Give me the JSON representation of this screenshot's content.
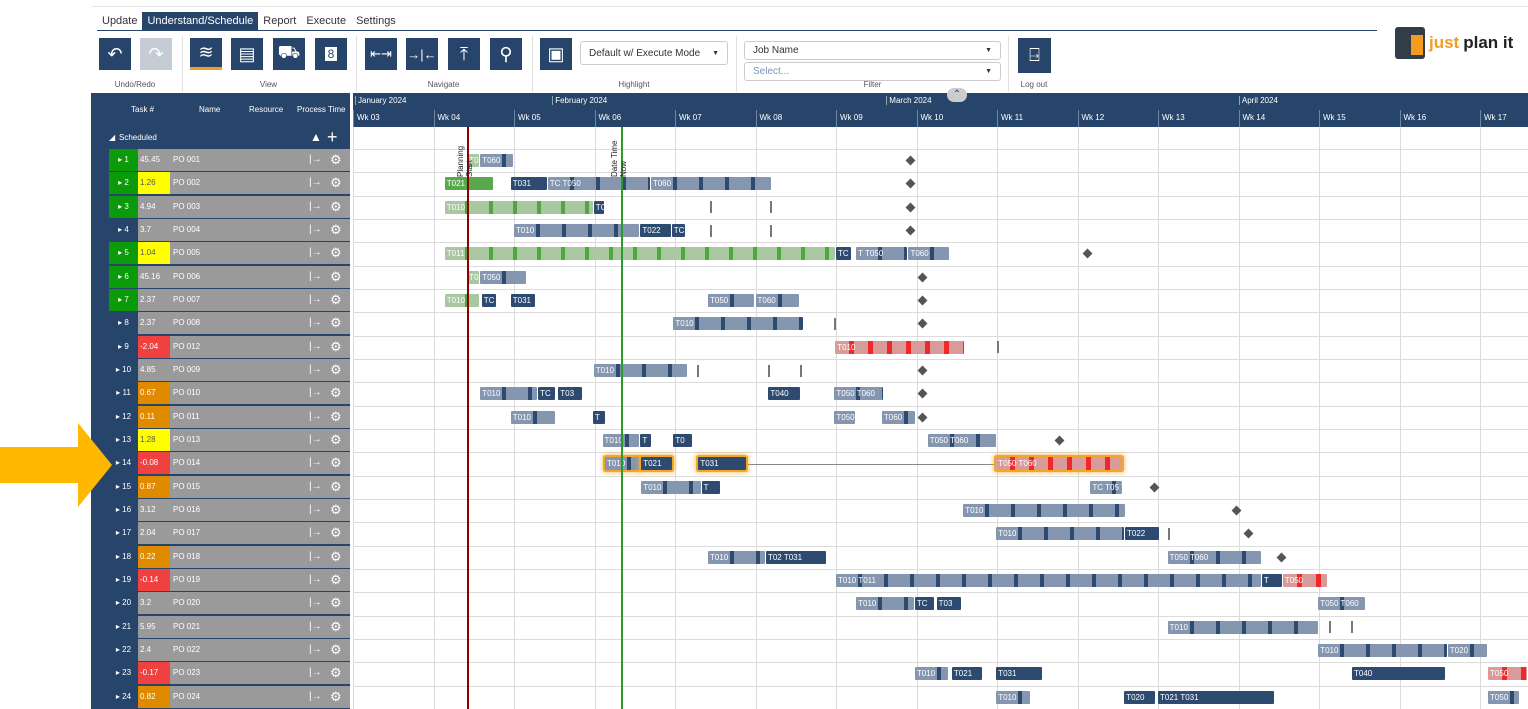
{
  "tabs": [
    "Update",
    "Understand/Schedule",
    "Report",
    "Execute",
    "Settings"
  ],
  "active_tab": "Understand/Schedule",
  "toolbar": {
    "groups": {
      "undo": "Undo/Redo",
      "view": "View",
      "navigate": "Navigate",
      "highlight": "Highlight",
      "filter": "Filter",
      "logout": "Log out"
    },
    "highlight_select": "Default w/ Execute Mode",
    "filter_field": "Job Name",
    "filter_value_placeholder": "Select..."
  },
  "logo": {
    "text1": "just",
    "text2": "plan it"
  },
  "left_header": {
    "task": "Task #",
    "name": "Name",
    "resource": "Resource",
    "process_time": "Process Time",
    "group": "Scheduled"
  },
  "colors": {
    "green": "#0a9a0a",
    "yellow": "#ffff00",
    "orange": "#e08a00",
    "red": "#f04040",
    "navy": "#27456a",
    "highlight": "#f5a623"
  },
  "rows": [
    {
      "n": "1",
      "t": "45.45",
      "name": "PO 001",
      "nc": "green",
      "tc": ""
    },
    {
      "n": "2",
      "t": "1.26",
      "name": "PO 002",
      "nc": "green",
      "tc": "yellow"
    },
    {
      "n": "3",
      "t": "4.94",
      "name": "PO 003",
      "nc": "green",
      "tc": ""
    },
    {
      "n": "4",
      "t": "3.7",
      "name": "PO 004",
      "nc": "",
      "tc": ""
    },
    {
      "n": "5",
      "t": "1.04",
      "name": "PO 005",
      "nc": "green",
      "tc": "yellow"
    },
    {
      "n": "6",
      "t": "45.16",
      "name": "PO 006",
      "nc": "green",
      "tc": ""
    },
    {
      "n": "7",
      "t": "2.37",
      "name": "PO 007",
      "nc": "green",
      "tc": ""
    },
    {
      "n": "8",
      "t": "2.37",
      "name": "PO 008",
      "nc": "",
      "tc": ""
    },
    {
      "n": "9",
      "t": "-2.04",
      "name": "PO 012",
      "nc": "",
      "tc": "red"
    },
    {
      "n": "10",
      "t": "4.85",
      "name": "PO 009",
      "nc": "",
      "tc": ""
    },
    {
      "n": "11",
      "t": "0.67",
      "name": "PO 010",
      "nc": "",
      "tc": "orange"
    },
    {
      "n": "12",
      "t": "0.11",
      "name": "PO 011",
      "nc": "",
      "tc": "orange"
    },
    {
      "n": "13",
      "t": "1.28",
      "name": "PO 013",
      "nc": "",
      "tc": "yellow"
    },
    {
      "n": "14",
      "t": "-0.08",
      "name": "PO 014",
      "nc": "",
      "tc": "red"
    },
    {
      "n": "15",
      "t": "0.87",
      "name": "PO 015",
      "nc": "",
      "tc": "orange"
    },
    {
      "n": "16",
      "t": "3.12",
      "name": "PO 016",
      "nc": "",
      "tc": ""
    },
    {
      "n": "17",
      "t": "2.04",
      "name": "PO 017",
      "nc": "",
      "tc": ""
    },
    {
      "n": "18",
      "t": "0.22",
      "name": "PO 018",
      "nc": "",
      "tc": "orange"
    },
    {
      "n": "19",
      "t": "-0.14",
      "name": "PO 019",
      "nc": "",
      "tc": "red"
    },
    {
      "n": "20",
      "t": "3.2",
      "name": "PO 020",
      "nc": "",
      "tc": ""
    },
    {
      "n": "21",
      "t": "5.95",
      "name": "PO 021",
      "nc": "",
      "tc": ""
    },
    {
      "n": "22",
      "t": "2.4",
      "name": "PO 022",
      "nc": "",
      "tc": ""
    },
    {
      "n": "23",
      "t": "-0.17",
      "name": "PO 023",
      "nc": "",
      "tc": "red"
    },
    {
      "n": "24",
      "t": "0.82",
      "name": "PO 024",
      "nc": "",
      "tc": "orange"
    }
  ],
  "timeline": {
    "months": [
      {
        "label": "January 2024",
        "week": 3
      },
      {
        "label": "February 2024",
        "week": 5.45
      },
      {
        "label": "March 2024",
        "week": 9.6
      },
      {
        "label": "April 2024",
        "week": 13.98
      }
    ],
    "weeks": [
      "Wk 03",
      "Wk 04",
      "Wk 05",
      "Wk 06",
      "Wk 07",
      "Wk 08",
      "Wk 09",
      "Wk 10",
      "Wk 11",
      "Wk 12",
      "Wk 13",
      "Wk 14",
      "Wk 15",
      "Wk 16",
      "Wk 17"
    ],
    "first_week": 3,
    "planning_start": {
      "label": "Planning Start",
      "week": 4.42
    },
    "date_time_now": {
      "label": "Date Time Now",
      "week": 6.33
    }
  },
  "gantt": [
    {
      "bars": [
        [
          "T05",
          4.42,
          4.58,
          "green"
        ],
        [
          "T060",
          4.58,
          5.0,
          "blue"
        ]
      ],
      "dia": [
        9.92
      ]
    },
    {
      "bars": [
        [
          "T021",
          4.14,
          4.75,
          "solidgreen"
        ],
        [
          "T031",
          4.96,
          5.42,
          "dark"
        ],
        [
          "TC T050",
          5.42,
          6.7,
          "blue"
        ],
        [
          "T060",
          6.7,
          8.2,
          "blue"
        ]
      ],
      "dia": [
        9.92
      ]
    },
    {
      "bars": [
        [
          "T010",
          4.14,
          5.99,
          "green"
        ],
        [
          "TC",
          5.99,
          6.13,
          "dark"
        ]
      ],
      "dia": [
        9.92
      ],
      "ticks": [
        7.43,
        8.18
      ]
    },
    {
      "bars": [
        [
          "T010",
          5.0,
          6.57,
          "blue"
        ],
        [
          "T022",
          6.57,
          6.96,
          "dark"
        ],
        [
          "TC",
          6.96,
          7.14,
          "dark"
        ]
      ],
      "dia": [
        9.92
      ],
      "ticks": [
        7.43,
        8.18
      ]
    },
    {
      "bars": [
        [
          "T011",
          4.14,
          9.0,
          "green"
        ],
        [
          "TC",
          9.0,
          9.2,
          "dark"
        ],
        [
          "T T050",
          9.25,
          9.9,
          "blue"
        ],
        [
          "T060",
          9.9,
          10.42,
          "blue"
        ]
      ],
      "dia": [
        12.12
      ]
    },
    {
      "bars": [
        [
          "T04",
          4.42,
          4.58,
          "green"
        ],
        [
          "T050",
          4.58,
          5.16,
          "blue"
        ]
      ],
      "dia": [
        10.07
      ]
    },
    {
      "bars": [
        [
          "T010",
          4.14,
          4.58,
          "green"
        ],
        [
          "TC",
          4.6,
          4.79,
          "dark"
        ],
        [
          "T031",
          4.96,
          5.27,
          "dark"
        ],
        [
          "T050",
          7.41,
          8.0,
          "blue"
        ],
        [
          "T060",
          8.0,
          8.55,
          "blue"
        ]
      ],
      "dia": [
        10.07
      ]
    },
    {
      "bars": [
        [
          "T010",
          6.98,
          8.6,
          "blue"
        ]
      ],
      "dia": [
        10.07
      ],
      "ticks": [
        8.97
      ]
    },
    {
      "bars": [
        [
          "T010",
          8.99,
          10.6,
          "red"
        ]
      ],
      "dia": [],
      "ticks": [
        11.0
      ]
    },
    {
      "bars": [
        [
          "T010",
          5.99,
          7.16,
          "blue"
        ]
      ],
      "dia": [
        10.07
      ],
      "ticks": [
        7.27,
        8.16,
        8.55
      ]
    },
    {
      "bars": [
        [
          "T010",
          4.58,
          5.3,
          "blue"
        ],
        [
          "TC",
          5.3,
          5.52,
          "dark"
        ],
        [
          "T03",
          5.55,
          5.86,
          "dark"
        ],
        [
          "T040",
          8.16,
          8.57,
          "dark"
        ],
        [
          "T050 T060",
          8.98,
          9.6,
          "blue"
        ]
      ],
      "dia": [
        10.07
      ]
    },
    {
      "bars": [
        [
          "T010",
          4.96,
          5.52,
          "blue"
        ],
        [
          "T",
          5.98,
          6.14,
          "dark"
        ],
        [
          "T050",
          8.98,
          9.25,
          "blue"
        ],
        [
          "T060",
          9.57,
          9.99,
          "blue"
        ]
      ],
      "dia": [
        10.07
      ]
    },
    {
      "bars": [
        [
          "T010",
          6.1,
          6.57,
          "blue"
        ],
        [
          "T",
          6.57,
          6.72,
          "dark"
        ],
        [
          "T0",
          6.98,
          7.22,
          "dark"
        ],
        [
          "T050 T060",
          10.14,
          11.0,
          "blue"
        ]
      ],
      "dia": [
        11.78
      ]
    },
    {
      "bars": [
        [
          "T010",
          6.13,
          6.57,
          "blue"
        ],
        [
          "T021",
          6.58,
          6.98,
          "dark"
        ],
        [
          "T031",
          7.29,
          7.89,
          "dark"
        ],
        [
          "T050 T060",
          10.99,
          12.57,
          "red"
        ]
      ],
      "dia": [],
      "highlight": true,
      "link": [
        7.89,
        10.99
      ]
    },
    {
      "bars": [
        [
          "T010",
          6.58,
          7.33,
          "blue"
        ],
        [
          "T",
          7.33,
          7.57,
          "dark"
        ],
        [
          "TC T05 T0",
          12.16,
          12.57,
          "blue"
        ]
      ],
      "dia": [
        12.96
      ]
    },
    {
      "bars": [
        [
          "T010",
          10.58,
          12.6,
          "blue"
        ]
      ],
      "dia": [
        13.98
      ]
    },
    {
      "bars": [
        [
          "T010",
          10.99,
          12.59,
          "blue"
        ],
        [
          "T022",
          12.59,
          13.02,
          "dark"
        ]
      ],
      "dia": [
        14.12
      ],
      "ticks": [
        13.12
      ]
    },
    {
      "bars": [
        [
          "T010",
          7.41,
          8.13,
          "blue"
        ],
        [
          "T02 T031",
          8.13,
          8.89,
          "dark"
        ],
        [
          "T050 T060",
          13.12,
          14.29,
          "blue"
        ]
      ],
      "dia": [
        14.53
      ]
    },
    {
      "bars": [
        [
          "T010 T011",
          9.0,
          14.29,
          "blue"
        ],
        [
          "T",
          14.29,
          14.55,
          "dark"
        ],
        [
          "T050",
          14.55,
          15.11,
          "red"
        ]
      ],
      "dia": []
    },
    {
      "bars": [
        [
          "T010",
          9.25,
          9.98,
          "blue"
        ],
        [
          "TC",
          9.98,
          10.23,
          "dark"
        ],
        [
          "T03",
          10.25,
          10.57,
          "dark"
        ],
        [
          "T050 T060",
          14.99,
          15.58,
          "blue"
        ]
      ],
      "dia": []
    },
    {
      "bars": [
        [
          "T010",
          13.12,
          15.0,
          "blue"
        ]
      ],
      "dia": [],
      "ticks": [
        15.12,
        15.4
      ]
    },
    {
      "bars": [
        [
          "T010",
          14.99,
          16.6,
          "blue"
        ],
        [
          "T020",
          16.6,
          17.1,
          "blue"
        ]
      ],
      "dia": []
    },
    {
      "bars": [
        [
          "T010",
          9.98,
          10.4,
          "blue"
        ],
        [
          "T021",
          10.44,
          10.83,
          "dark"
        ],
        [
          "T031",
          10.99,
          11.57,
          "dark"
        ],
        [
          "T040",
          15.41,
          16.58,
          "dark"
        ],
        [
          "T050",
          17.1,
          17.6,
          "red"
        ]
      ],
      "dia": []
    },
    {
      "bars": [
        [
          "T010",
          10.99,
          11.42,
          "blue"
        ],
        [
          "T020",
          12.58,
          12.98,
          "dark"
        ],
        [
          "T021 T031",
          13.0,
          14.45,
          "dark"
        ],
        [
          "T050",
          17.1,
          17.5,
          "blue"
        ]
      ],
      "dia": []
    }
  ]
}
